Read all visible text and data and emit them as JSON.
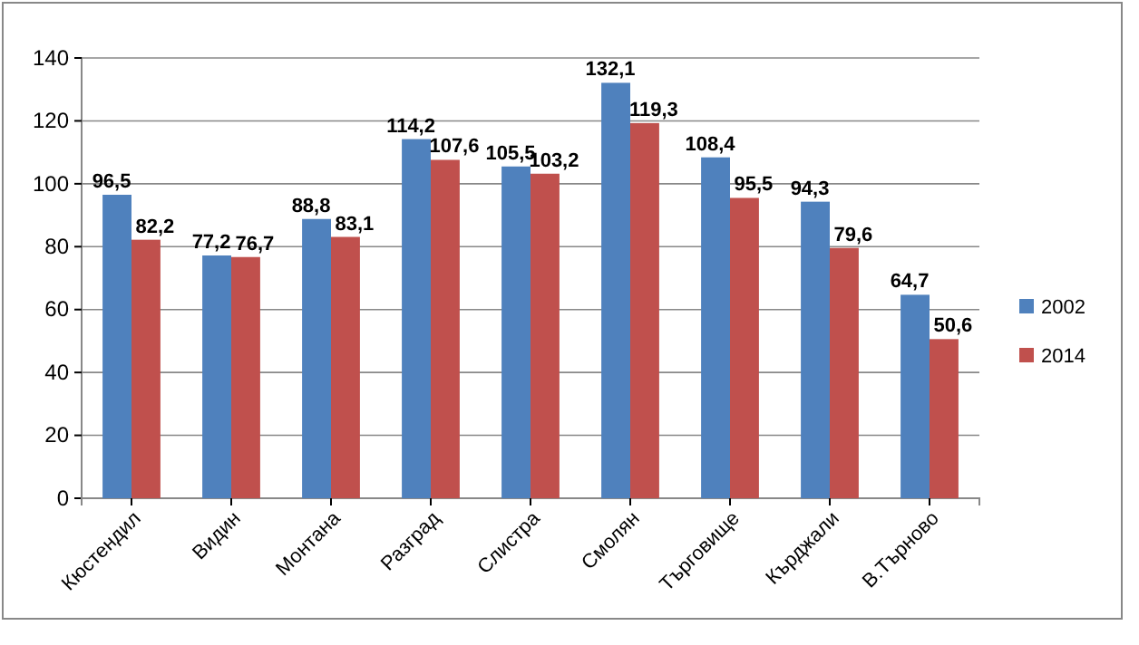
{
  "chart_data": {
    "type": "bar",
    "categories": [
      "Кюстендил",
      "Видин",
      "Монтана",
      "Разград",
      "Слистра",
      "Смолян",
      "Търговище",
      "Кърджали",
      "В.Търново"
    ],
    "series": [
      {
        "name": "2002",
        "color": "#4f81bd",
        "values": [
          96.5,
          77.2,
          88.8,
          114.2,
          105.5,
          132.1,
          108.4,
          94.3,
          64.7
        ],
        "value_labels": [
          "96,5",
          "77,2",
          "88,8",
          "114,2",
          "105,5",
          "132,1",
          "108,4",
          "94,3",
          "64,7"
        ]
      },
      {
        "name": "2014",
        "color": "#c0504d",
        "values": [
          82.2,
          76.7,
          83.1,
          107.6,
          103.2,
          119.3,
          95.5,
          79.6,
          50.6
        ],
        "value_labels": [
          "82,2",
          "76,7",
          "83,1",
          "107,6",
          "103,2",
          "119,3",
          "95,5",
          "79,6",
          "50,6"
        ]
      }
    ],
    "ylim": [
      0,
      140
    ],
    "yticks": [
      0,
      20,
      40,
      60,
      80,
      100,
      120,
      140
    ],
    "grid": "y",
    "legend": "right"
  }
}
